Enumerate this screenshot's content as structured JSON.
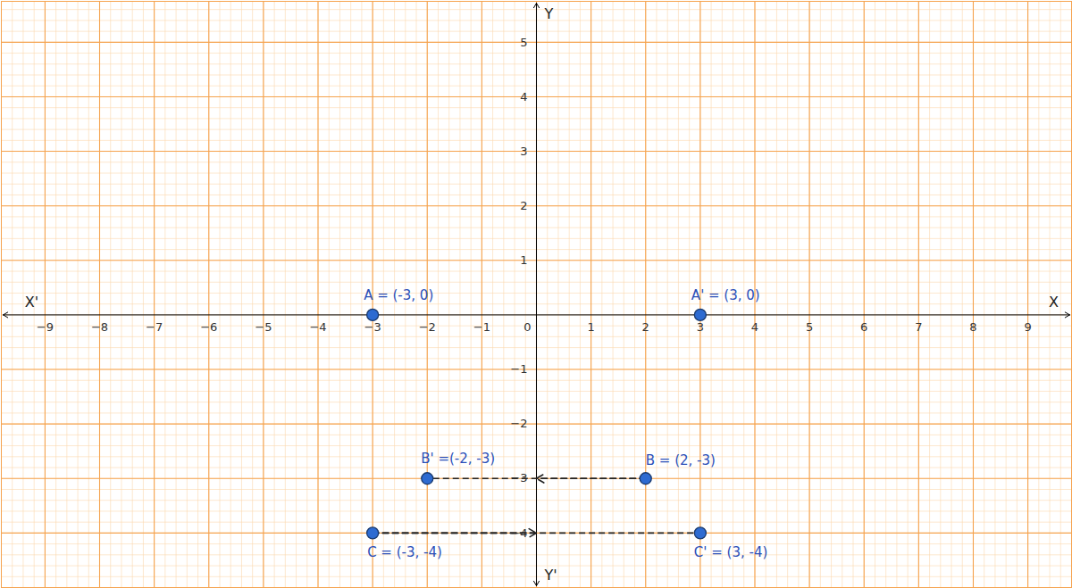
{
  "chart_data": {
    "type": "scatter",
    "xlim": [
      -9.8,
      9.8
    ],
    "ylim": [
      -5,
      5.75
    ],
    "xticks": [
      -9,
      -8,
      -7,
      -6,
      -5,
      -4,
      -3,
      -2,
      -1,
      0,
      1,
      2,
      3,
      4,
      5,
      6,
      7,
      8,
      9
    ],
    "yticks": [
      -4,
      -3,
      -2,
      -1,
      1,
      2,
      3,
      4,
      5
    ],
    "grid": true,
    "color": "#2e6bd1",
    "axis_labels": {
      "x": "X",
      "x_negative": "X'",
      "y": "Y",
      "y_negative": "Y'"
    },
    "points": [
      {
        "name": "A",
        "x": -3,
        "y": 0,
        "label": "A = (-3, 0)"
      },
      {
        "name": "A'",
        "x": 3,
        "y": 0,
        "label": "A' = (3, 0)"
      },
      {
        "name": "B'",
        "x": -2,
        "y": -3,
        "label": "B' =(-2, -3)"
      },
      {
        "name": "B",
        "x": 2,
        "y": -3,
        "label": "B = (2, -3)"
      },
      {
        "name": "C",
        "x": -3,
        "y": -4,
        "label": "C = (-3, -4)"
      },
      {
        "name": "C'",
        "x": 3,
        "y": -4,
        "label": "C' = (3, -4)"
      }
    ],
    "arrows": [
      {
        "from": "B",
        "to": "B'"
      },
      {
        "from": "C",
        "to": "C'"
      }
    ]
  }
}
